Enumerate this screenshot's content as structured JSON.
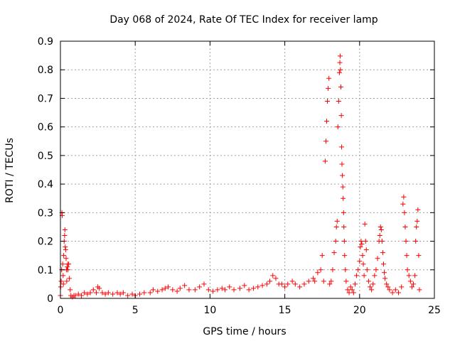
{
  "chart_data": {
    "type": "scatter",
    "title": "Day 068 of 2024, Rate Of TEC Index for receiver lamp",
    "xlabel": "GPS time / hours",
    "ylabel": "ROTI / TECUs",
    "xlim": [
      0,
      25
    ],
    "ylim": [
      0,
      0.9
    ],
    "xticks": [
      0,
      5,
      10,
      15,
      20,
      25
    ],
    "xtick_labels": [
      "0",
      "5",
      "10",
      "15",
      "20",
      "25"
    ],
    "yticks": [
      0,
      0.1,
      0.2,
      0.3,
      0.4,
      0.5,
      0.6,
      0.7,
      0.8,
      0.9
    ],
    "ytick_labels": [
      "0",
      "0.1",
      "0.2",
      "0.3",
      "0.4",
      "0.5",
      "0.6",
      "0.7",
      "0.8",
      "0.9"
    ],
    "grid": true,
    "marker": "plus",
    "marker_color": "#ff0000",
    "series": [
      {
        "points": [
          [
            0.0,
            0.01
          ],
          [
            0.02,
            0.04
          ],
          [
            0.05,
            0.06
          ],
          [
            0.08,
            0.1
          ],
          [
            0.1,
            0.3
          ],
          [
            0.12,
            0.29
          ],
          [
            0.15,
            0.12
          ],
          [
            0.18,
            0.08
          ],
          [
            0.2,
            0.05
          ],
          [
            0.22,
            0.15
          ],
          [
            0.25,
            0.2
          ],
          [
            0.28,
            0.22
          ],
          [
            0.3,
            0.24
          ],
          [
            0.32,
            0.18
          ],
          [
            0.35,
            0.17
          ],
          [
            0.38,
            0.14
          ],
          [
            0.4,
            0.1
          ],
          [
            0.42,
            0.06
          ],
          [
            0.45,
            0.11
          ],
          [
            0.48,
            0.12
          ],
          [
            0.5,
            0.1
          ],
          [
            0.55,
            0.12
          ],
          [
            0.6,
            0.07
          ],
          [
            0.65,
            0.03
          ],
          [
            0.7,
            0.01
          ],
          [
            0.8,
            0.005
          ],
          [
            0.9,
            0.01
          ],
          [
            1.0,
            0.01
          ],
          [
            1.2,
            0.015
          ],
          [
            1.4,
            0.01
          ],
          [
            1.6,
            0.02
          ],
          [
            1.8,
            0.015
          ],
          [
            2.0,
            0.02
          ],
          [
            2.2,
            0.03
          ],
          [
            2.4,
            0.02
          ],
          [
            2.5,
            0.04
          ],
          [
            2.6,
            0.035
          ],
          [
            2.8,
            0.02
          ],
          [
            3.0,
            0.015
          ],
          [
            3.2,
            0.02
          ],
          [
            3.5,
            0.015
          ],
          [
            3.8,
            0.02
          ],
          [
            4.0,
            0.015
          ],
          [
            4.2,
            0.02
          ],
          [
            4.5,
            0.01
          ],
          [
            4.8,
            0.015
          ],
          [
            5.0,
            0.01
          ],
          [
            5.3,
            0.015
          ],
          [
            5.6,
            0.02
          ],
          [
            6.0,
            0.02
          ],
          [
            6.2,
            0.03
          ],
          [
            6.5,
            0.025
          ],
          [
            6.8,
            0.03
          ],
          [
            7.0,
            0.035
          ],
          [
            7.2,
            0.04
          ],
          [
            7.5,
            0.03
          ],
          [
            7.8,
            0.025
          ],
          [
            8.0,
            0.035
          ],
          [
            8.3,
            0.045
          ],
          [
            8.6,
            0.03
          ],
          [
            9.0,
            0.03
          ],
          [
            9.3,
            0.04
          ],
          [
            9.6,
            0.05
          ],
          [
            9.9,
            0.03
          ],
          [
            10.2,
            0.025
          ],
          [
            10.5,
            0.03
          ],
          [
            10.8,
            0.035
          ],
          [
            11.0,
            0.03
          ],
          [
            11.3,
            0.04
          ],
          [
            11.6,
            0.03
          ],
          [
            12.0,
            0.035
          ],
          [
            12.3,
            0.045
          ],
          [
            12.6,
            0.03
          ],
          [
            12.9,
            0.035
          ],
          [
            13.2,
            0.04
          ],
          [
            13.5,
            0.045
          ],
          [
            13.8,
            0.05
          ],
          [
            14.0,
            0.06
          ],
          [
            14.2,
            0.08
          ],
          [
            14.4,
            0.07
          ],
          [
            14.6,
            0.05
          ],
          [
            14.8,
            0.05
          ],
          [
            15.0,
            0.04
          ],
          [
            15.2,
            0.05
          ],
          [
            15.5,
            0.06
          ],
          [
            15.7,
            0.05
          ],
          [
            16.0,
            0.04
          ],
          [
            16.3,
            0.05
          ],
          [
            16.6,
            0.06
          ],
          [
            16.9,
            0.07
          ],
          [
            17.0,
            0.06
          ],
          [
            17.2,
            0.09
          ],
          [
            17.4,
            0.1
          ],
          [
            17.5,
            0.15
          ],
          [
            17.6,
            0.06
          ],
          [
            17.7,
            0.48
          ],
          [
            17.75,
            0.55
          ],
          [
            17.8,
            0.62
          ],
          [
            17.85,
            0.69
          ],
          [
            17.9,
            0.735
          ],
          [
            17.95,
            0.77
          ],
          [
            18.0,
            0.05
          ],
          [
            18.1,
            0.06
          ],
          [
            18.2,
            0.1
          ],
          [
            18.3,
            0.16
          ],
          [
            18.4,
            0.2
          ],
          [
            18.45,
            0.25
          ],
          [
            18.5,
            0.27
          ],
          [
            18.55,
            0.6
          ],
          [
            18.6,
            0.69
          ],
          [
            18.65,
            0.79
          ],
          [
            18.68,
            0.825
          ],
          [
            18.7,
            0.848
          ],
          [
            18.72,
            0.8
          ],
          [
            18.75,
            0.74
          ],
          [
            18.78,
            0.64
          ],
          [
            18.8,
            0.53
          ],
          [
            18.82,
            0.47
          ],
          [
            18.85,
            0.43
          ],
          [
            18.88,
            0.39
          ],
          [
            18.9,
            0.35
          ],
          [
            18.93,
            0.3
          ],
          [
            18.95,
            0.25
          ],
          [
            18.98,
            0.2
          ],
          [
            19.0,
            0.15
          ],
          [
            19.05,
            0.1
          ],
          [
            19.1,
            0.06
          ],
          [
            19.2,
            0.03
          ],
          [
            19.3,
            0.02
          ],
          [
            19.4,
            0.04
          ],
          [
            19.5,
            0.03
          ],
          [
            19.6,
            0.02
          ],
          [
            19.7,
            0.05
          ],
          [
            19.8,
            0.08
          ],
          [
            19.9,
            0.1
          ],
          [
            20.0,
            0.13
          ],
          [
            20.05,
            0.18
          ],
          [
            20.1,
            0.2
          ],
          [
            20.15,
            0.19
          ],
          [
            20.2,
            0.15
          ],
          [
            20.25,
            0.12
          ],
          [
            20.3,
            0.08
          ],
          [
            20.35,
            0.26
          ],
          [
            20.4,
            0.2
          ],
          [
            20.45,
            0.17
          ],
          [
            20.5,
            0.1
          ],
          [
            20.6,
            0.06
          ],
          [
            20.7,
            0.04
          ],
          [
            20.8,
            0.03
          ],
          [
            20.9,
            0.05
          ],
          [
            21.0,
            0.08
          ],
          [
            21.1,
            0.1
          ],
          [
            21.2,
            0.14
          ],
          [
            21.3,
            0.2
          ],
          [
            21.35,
            0.22
          ],
          [
            21.4,
            0.25
          ],
          [
            21.45,
            0.24
          ],
          [
            21.5,
            0.2
          ],
          [
            21.55,
            0.16
          ],
          [
            21.6,
            0.12
          ],
          [
            21.65,
            0.09
          ],
          [
            21.7,
            0.07
          ],
          [
            21.8,
            0.05
          ],
          [
            21.9,
            0.04
          ],
          [
            22.0,
            0.03
          ],
          [
            22.2,
            0.02
          ],
          [
            22.4,
            0.03
          ],
          [
            22.6,
            0.02
          ],
          [
            22.8,
            0.04
          ],
          [
            22.9,
            0.33
          ],
          [
            22.95,
            0.355
          ],
          [
            23.0,
            0.3
          ],
          [
            23.05,
            0.25
          ],
          [
            23.1,
            0.2
          ],
          [
            23.15,
            0.15
          ],
          [
            23.2,
            0.1
          ],
          [
            23.3,
            0.08
          ],
          [
            23.4,
            0.06
          ],
          [
            23.5,
            0.04
          ],
          [
            23.6,
            0.05
          ],
          [
            23.7,
            0.08
          ],
          [
            23.75,
            0.2
          ],
          [
            23.8,
            0.25
          ],
          [
            23.85,
            0.27
          ],
          [
            23.9,
            0.31
          ],
          [
            23.95,
            0.15
          ],
          [
            24.0,
            0.03
          ]
        ]
      }
    ]
  }
}
